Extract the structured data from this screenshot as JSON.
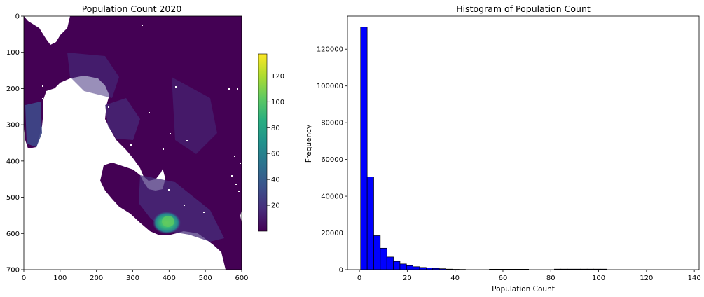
{
  "chart_data": [
    {
      "type": "heatmap",
      "title": "Population Count 2020",
      "xlabel": "",
      "ylabel": "",
      "xlim": [
        0,
        600
      ],
      "ylim": [
        700,
        0
      ],
      "x_ticks": [
        "0",
        "100",
        "200",
        "300",
        "400",
        "500",
        "600"
      ],
      "y_ticks": [
        "0",
        "100",
        "200",
        "300",
        "400",
        "500",
        "600",
        "700"
      ],
      "colormap": "viridis",
      "colorbar": {
        "range": [
          0,
          137
        ],
        "ticks": [
          "20",
          "40",
          "60",
          "80",
          "100",
          "120"
        ]
      },
      "background_color": "#440154",
      "hotspot": {
        "center": [
          395,
          580
        ],
        "peak_value": 90
      }
    },
    {
      "type": "bar",
      "title": "Histogram of Population Count",
      "xlabel": "Population Count",
      "ylabel": "Frequency",
      "xlim": [
        -5,
        142
      ],
      "ylim": [
        0,
        138000
      ],
      "x_ticks": [
        "0",
        "20",
        "40",
        "60",
        "80",
        "100",
        "120",
        "140"
      ],
      "y_ticks": [
        "0",
        "20000",
        "40000",
        "60000",
        "80000",
        "100000",
        "120000"
      ],
      "bar_color": "#0000ff",
      "edge_color": "#000000",
      "bin_width": 2.74,
      "bin_starts": [
        0.5,
        3.24,
        5.98,
        8.72,
        11.46,
        14.2,
        16.94,
        19.68,
        22.42,
        25.16,
        27.9,
        30.64,
        33.38,
        36.12,
        38.86,
        41.6,
        54.3,
        57.04,
        59.78,
        62.52,
        65.26,
        68.0,
        81.5,
        84.24,
        86.98,
        89.72,
        92.46,
        95.2,
        97.94,
        100.68
      ],
      "values": [
        132000,
        50500,
        18500,
        11700,
        6900,
        4500,
        3100,
        2200,
        1600,
        1200,
        900,
        700,
        500,
        300,
        200,
        150,
        250,
        250,
        250,
        250,
        250,
        250,
        300,
        300,
        300,
        300,
        300,
        300,
        300,
        300
      ]
    }
  ]
}
